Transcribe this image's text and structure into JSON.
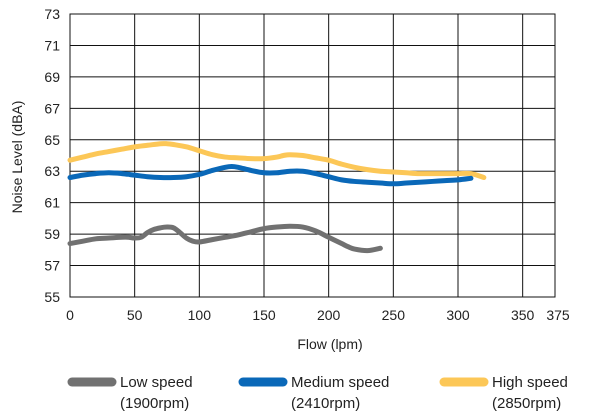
{
  "chart_data": {
    "type": "line",
    "title": "",
    "xlabel": "Flow (lpm)",
    "ylabel": "Noise Level (dBA)",
    "xlim": [
      0,
      375
    ],
    "ylim": [
      55,
      73
    ],
    "xticks": [
      0,
      50,
      100,
      150,
      200,
      250,
      300,
      350,
      375
    ],
    "xtick_labels": [
      "0",
      "50",
      "100",
      "150",
      "200",
      "250",
      "300",
      "350",
      "375"
    ],
    "yticks": [
      55,
      57,
      59,
      61,
      63,
      65,
      67,
      69,
      71,
      73
    ],
    "ytick_labels": [
      "55",
      "57",
      "59",
      "61",
      "63",
      "65",
      "67",
      "69",
      "71",
      "73"
    ],
    "grid": true,
    "legend_position": "bottom",
    "series": [
      {
        "name": "Low speed",
        "sub": "(1900rpm)",
        "color": "#717171",
        "x": [
          0,
          10,
          20,
          30,
          40,
          45,
          50,
          55,
          60,
          65,
          70,
          75,
          80,
          85,
          90,
          95,
          100,
          110,
          120,
          130,
          140,
          150,
          160,
          170,
          180,
          190,
          200,
          210,
          215,
          220,
          230,
          240
        ],
        "y": [
          58.4,
          58.55,
          58.7,
          58.75,
          58.8,
          58.8,
          58.75,
          58.8,
          59.1,
          59.3,
          59.4,
          59.45,
          59.4,
          59.1,
          58.75,
          58.55,
          58.5,
          58.65,
          58.8,
          58.95,
          59.15,
          59.35,
          59.45,
          59.5,
          59.45,
          59.2,
          58.8,
          58.4,
          58.2,
          58.05,
          57.95,
          58.1
        ]
      },
      {
        "name": "Medium speed",
        "sub": "(2410rpm)",
        "color": "#0a68b8",
        "x": [
          0,
          10,
          20,
          30,
          40,
          50,
          60,
          70,
          80,
          90,
          100,
          110,
          120,
          125,
          130,
          140,
          150,
          160,
          170,
          180,
          190,
          200,
          210,
          220,
          230,
          240,
          250,
          260,
          270,
          280,
          290,
          300,
          310
        ],
        "y": [
          62.6,
          62.75,
          62.85,
          62.9,
          62.85,
          62.75,
          62.65,
          62.6,
          62.6,
          62.65,
          62.8,
          63.05,
          63.25,
          63.3,
          63.25,
          63.05,
          62.9,
          62.9,
          63.0,
          63.0,
          62.85,
          62.65,
          62.45,
          62.35,
          62.3,
          62.25,
          62.2,
          62.25,
          62.3,
          62.35,
          62.4,
          62.45,
          62.55
        ]
      },
      {
        "name": "High speed",
        "sub": "(2850rpm)",
        "color": "#fcc757",
        "x": [
          0,
          10,
          20,
          30,
          40,
          50,
          60,
          70,
          75,
          80,
          90,
          100,
          110,
          120,
          130,
          140,
          150,
          160,
          165,
          170,
          180,
          190,
          200,
          210,
          220,
          230,
          240,
          250,
          260,
          270,
          280,
          290,
          300,
          310,
          320
        ],
        "y": [
          63.7,
          63.9,
          64.1,
          64.25,
          64.4,
          64.55,
          64.65,
          64.75,
          64.75,
          64.7,
          64.55,
          64.3,
          64.05,
          63.9,
          63.85,
          63.8,
          63.8,
          63.9,
          64.0,
          64.05,
          64.0,
          63.85,
          63.7,
          63.45,
          63.25,
          63.1,
          63.0,
          62.95,
          62.9,
          62.85,
          62.85,
          62.85,
          62.85,
          62.85,
          62.6
        ]
      }
    ]
  }
}
